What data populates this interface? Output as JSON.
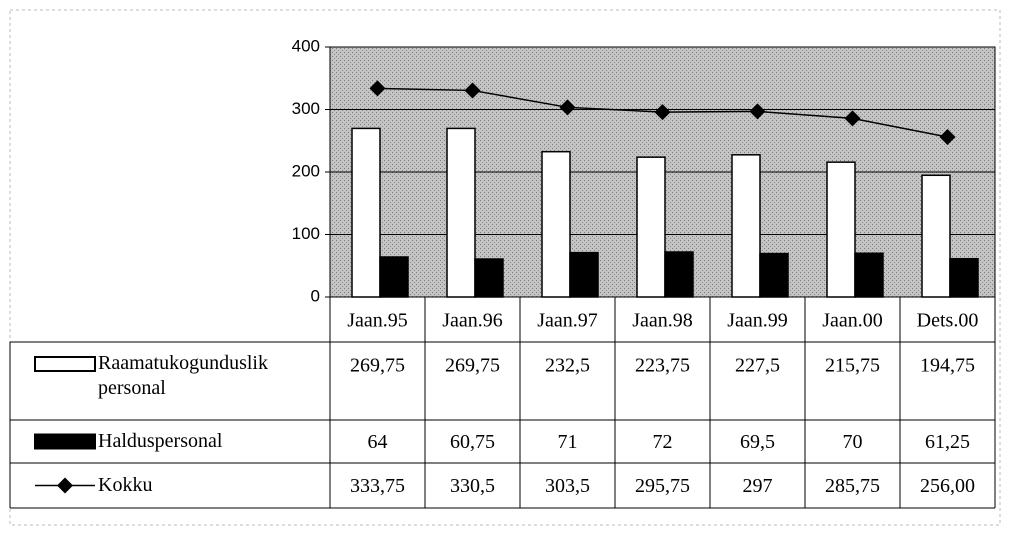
{
  "chart_data": {
    "type": "bar",
    "categories": [
      "Jaan.95",
      "Jaan.96",
      "Jaan.97",
      "Jaan.98",
      "Jaan.99",
      "Jaan.00",
      "Dets.00"
    ],
    "series": [
      {
        "name": "Raamatukogunduslik personal",
        "type": "bar",
        "color": "#ffffff",
        "values": [
          269.75,
          269.75,
          232.5,
          223.75,
          227.5,
          215.75,
          194.75
        ],
        "value_labels": [
          "269,75",
          "269,75",
          "232,5",
          "223,75",
          "227,5",
          "215,75",
          "194,75"
        ]
      },
      {
        "name": "Halduspersonal",
        "type": "bar",
        "color": "#000000",
        "values": [
          64,
          60.75,
          71,
          72,
          69.5,
          70,
          61.25
        ],
        "value_labels": [
          "64",
          "60,75",
          "71",
          "72",
          "69,5",
          "70",
          "61,25"
        ]
      },
      {
        "name": "Kokku",
        "type": "line",
        "color": "#000000",
        "values": [
          333.75,
          330.5,
          303.5,
          295.75,
          297,
          285.75,
          256
        ],
        "value_labels": [
          "333,75",
          "330,5",
          "303,5",
          "295,75",
          "297",
          "285,75",
          "256,00"
        ]
      }
    ],
    "ylim": [
      0,
      400
    ],
    "yticks": [
      0,
      100,
      200,
      300,
      400
    ],
    "grid": true
  }
}
